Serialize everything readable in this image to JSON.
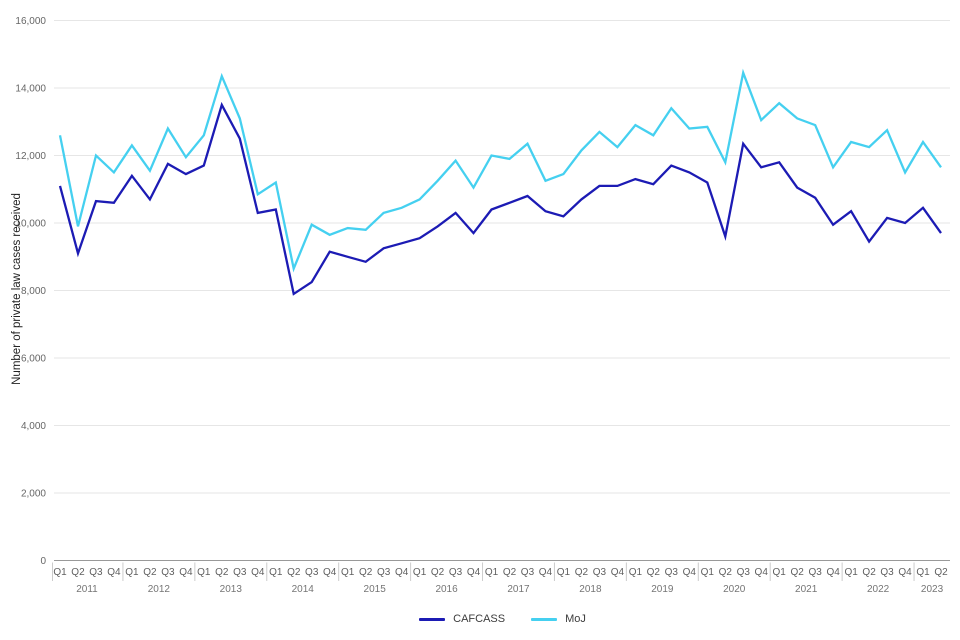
{
  "chart_data": {
    "type": "line",
    "title": "",
    "xlabel": "",
    "ylabel": "Number of private law cases received",
    "ylim": [
      0,
      16000
    ],
    "ytick_step": 2000,
    "ytick_labels": [
      "0",
      "2,000",
      "4,000",
      "6,000",
      "8,000",
      "10,000",
      "12,000",
      "14,000",
      "16,000"
    ],
    "grid": true,
    "legend_position": "bottom",
    "years": [
      {
        "label": "2011",
        "quarters": [
          "Q1",
          "Q2",
          "Q3",
          "Q4"
        ]
      },
      {
        "label": "2012",
        "quarters": [
          "Q1",
          "Q2",
          "Q3",
          "Q4"
        ]
      },
      {
        "label": "2013",
        "quarters": [
          "Q1",
          "Q2",
          "Q3",
          "Q4"
        ]
      },
      {
        "label": "2014",
        "quarters": [
          "Q1",
          "Q2",
          "Q3",
          "Q4"
        ]
      },
      {
        "label": "2015",
        "quarters": [
          "Q1",
          "Q2",
          "Q3",
          "Q4"
        ]
      },
      {
        "label": "2016",
        "quarters": [
          "Q1",
          "Q2",
          "Q3",
          "Q4"
        ]
      },
      {
        "label": "2017",
        "quarters": [
          "Q1",
          "Q2",
          "Q3",
          "Q4"
        ]
      },
      {
        "label": "2018",
        "quarters": [
          "Q1",
          "Q2",
          "Q3",
          "Q4"
        ]
      },
      {
        "label": "2019",
        "quarters": [
          "Q1",
          "Q2",
          "Q3",
          "Q4"
        ]
      },
      {
        "label": "2020",
        "quarters": [
          "Q1",
          "Q2",
          "Q3",
          "Q4"
        ]
      },
      {
        "label": "2021",
        "quarters": [
          "Q1",
          "Q2",
          "Q3",
          "Q4"
        ]
      },
      {
        "label": "2022",
        "quarters": [
          "Q1",
          "Q2",
          "Q3",
          "Q4"
        ]
      },
      {
        "label": "2023",
        "quarters": [
          "Q1",
          "Q2"
        ]
      }
    ],
    "series": [
      {
        "name": "CAFCASS",
        "color": "#1c1bb4",
        "values": [
          11100,
          9100,
          10650,
          10600,
          11400,
          10700,
          11750,
          11450,
          11700,
          13500,
          12500,
          10300,
          10400,
          7900,
          8250,
          9150,
          9000,
          8850,
          9250,
          9400,
          9550,
          9900,
          10300,
          9700,
          10400,
          10600,
          10800,
          10350,
          10200,
          10700,
          11100,
          11100,
          11300,
          11150,
          11700,
          11500,
          11200,
          9600,
          12350,
          11650,
          11800,
          11050,
          10750,
          9950,
          10350,
          9450,
          10150,
          10000,
          10450,
          9700
        ]
      },
      {
        "name": "MoJ",
        "color": "#45d0f0",
        "values": [
          12600,
          9900,
          12000,
          11500,
          12300,
          11550,
          12800,
          11950,
          12600,
          14350,
          13100,
          10850,
          11200,
          8650,
          9950,
          9650,
          9850,
          9800,
          10300,
          10450,
          10700,
          11250,
          11850,
          11050,
          12000,
          11900,
          12350,
          11250,
          11450,
          12150,
          12700,
          12250,
          12900,
          12600,
          13400,
          12800,
          12850,
          11800,
          14450,
          13050,
          13550,
          13100,
          12900,
          11650,
          12400,
          12250,
          12750,
          11500,
          12400,
          11650
        ]
      }
    ],
    "colors": {
      "gridline": "#e6e6e6",
      "axis_line": "#999999",
      "year_separator": "#cccccc",
      "tick_text": "#5f5f5f",
      "year_text": "#757575"
    }
  }
}
